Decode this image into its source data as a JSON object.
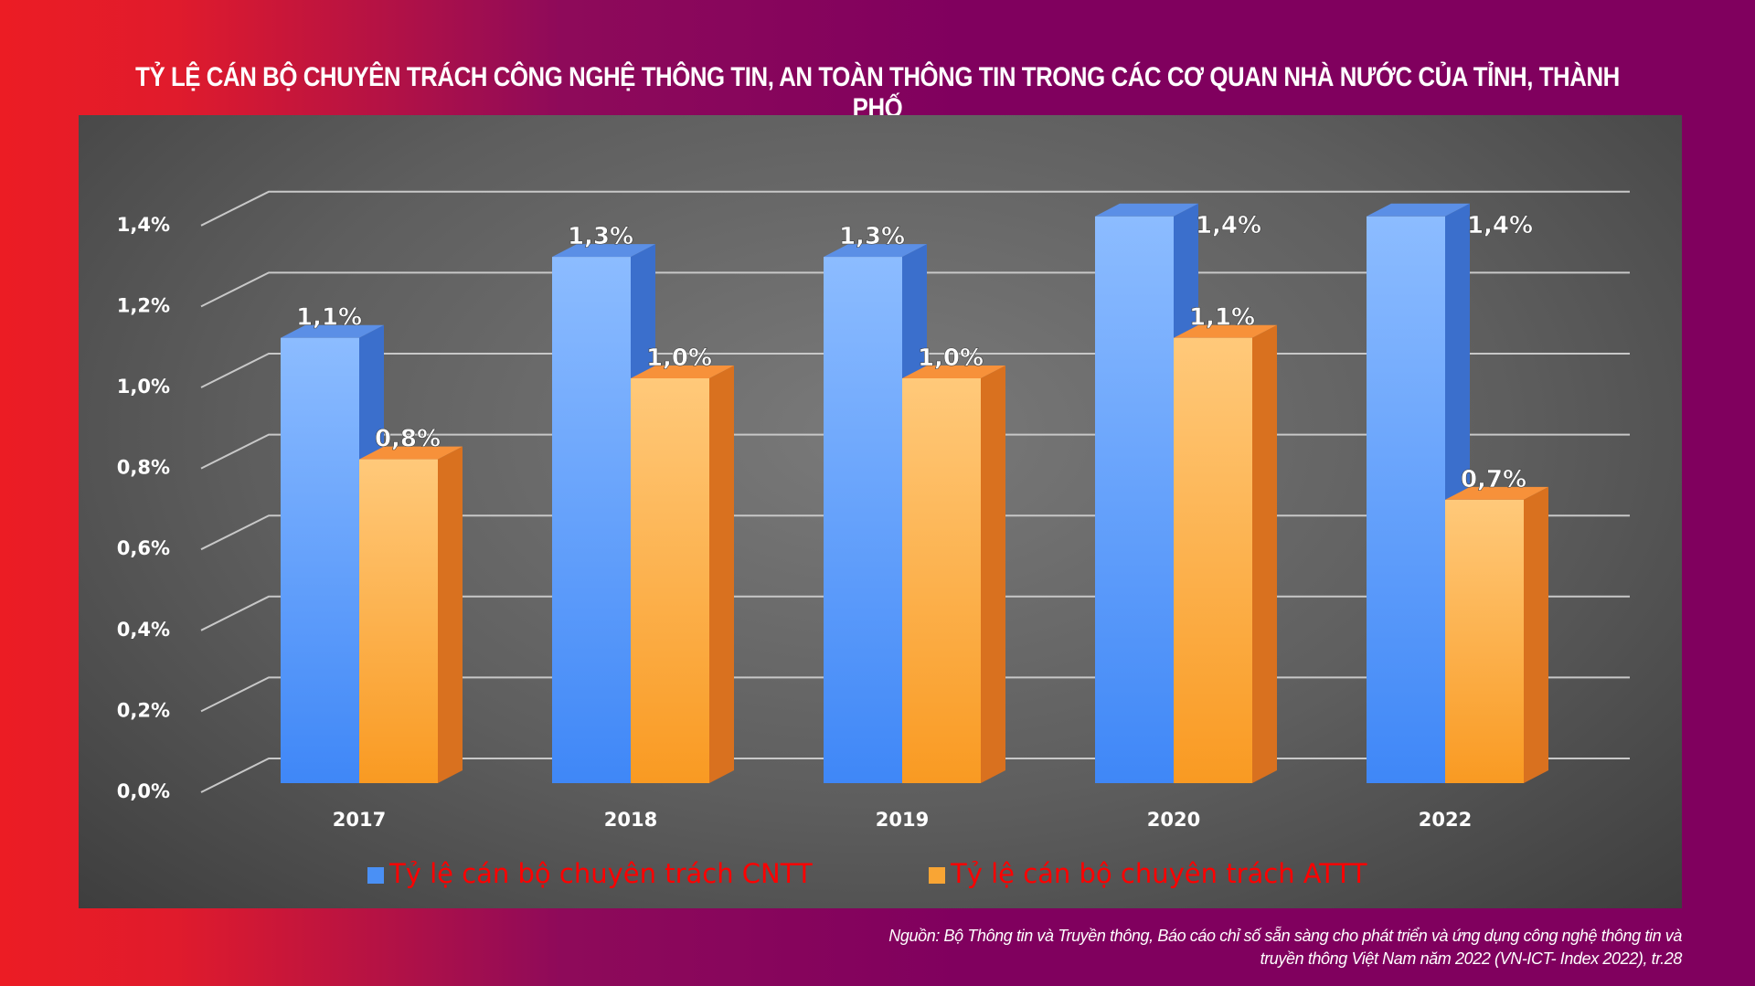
{
  "title": "TỶ LỆ CÁN BỘ CHUYÊN TRÁCH CÔNG NGHỆ THÔNG TIN, AN TOÀN THÔNG TIN TRONG CÁC CƠ QUAN NHÀ NƯỚC CỦA TỈNH, THÀNH PHỐ",
  "source": [
    "Nguồn: Bộ Thông tin và Truyền thông, Báo cáo chỉ số sẵn sàng cho phát triển và ứng dụng công nghệ thông tin và",
    "truyền thông Việt Nam năm 2022 (VN-ICT- Index 2022), tr.28"
  ],
  "chart_data": {
    "type": "bar",
    "title": "TỶ LỆ CÁN BỘ CHUYÊN TRÁCH CÔNG NGHỆ THÔNG TIN, AN TOÀN THÔNG TIN TRONG CÁC CƠ QUAN NHÀ NƯỚC CỦA TỈNH, THÀNH PHỐ",
    "categories": [
      "2017",
      "2018",
      "2019",
      "2020",
      "2022"
    ],
    "series": [
      {
        "name": "Tỷ lệ cán bộ chuyên trách CNTT",
        "values": [
          1.1,
          1.3,
          1.3,
          1.4,
          1.4
        ],
        "labels": [
          "1,1%",
          "1,3%",
          "1,3%",
          "1,4%",
          "1,4%"
        ],
        "color": "#4a90f5"
      },
      {
        "name": "Tỷ lệ cán bộ chuyên trách ATTT",
        "values": [
          0.8,
          1.0,
          1.0,
          1.1,
          0.7
        ],
        "labels": [
          "0,8%",
          "1,0%",
          "1,0%",
          "1,1%",
          "0,7%"
        ],
        "color": "#f9a534"
      }
    ],
    "yticks": [
      "0,0%",
      "0,2%",
      "0,4%",
      "0,6%",
      "0,8%",
      "1,0%",
      "1,2%",
      "1,4%"
    ],
    "ylim": [
      0,
      1.4
    ],
    "grid": true,
    "legend": "bottom",
    "legend_color": "#ff0000"
  }
}
